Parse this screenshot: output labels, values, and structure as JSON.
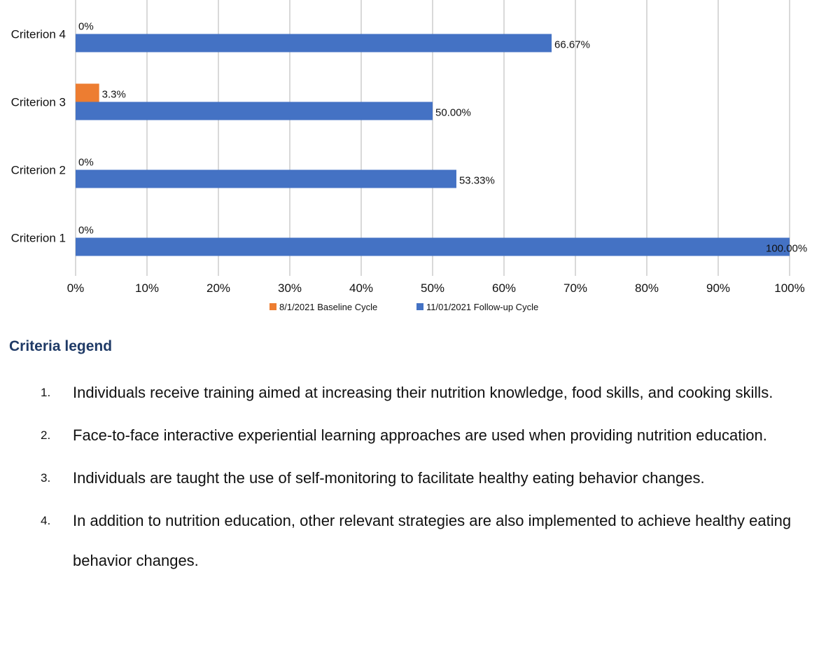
{
  "chart_data": {
    "type": "bar",
    "orientation": "horizontal",
    "categories": [
      "Criterion 4",
      "Criterion 3",
      "Criterion 2",
      "Criterion 1"
    ],
    "series": [
      {
        "name": "8/1/2021 Baseline Cycle",
        "color": "#ed7d31",
        "values": [
          0,
          3.3,
          0,
          0
        ],
        "labels": [
          "0%",
          "3.3%",
          "0%",
          "0%"
        ]
      },
      {
        "name": "11/01/2021 Follow-up Cycle",
        "color": "#4472c4",
        "values": [
          66.67,
          50.0,
          53.33,
          100.0
        ],
        "labels": [
          "66.67%",
          "50.00%",
          "53.33%",
          "100.00%"
        ]
      }
    ],
    "xlim": [
      0,
      100
    ],
    "xticks": [
      "0%",
      "10%",
      "20%",
      "30%",
      "40%",
      "50%",
      "60%",
      "70%",
      "80%",
      "90%",
      "100%"
    ],
    "grid": true,
    "legend_position": "bottom"
  },
  "criteria_legend": {
    "heading": "Criteria legend",
    "items": [
      {
        "num": "1.",
        "text": "Individuals receive training aimed at increasing their nutrition knowledge, food skills, and cooking skills."
      },
      {
        "num": "2.",
        "text": "Face-to-face interactive experiential learning approaches are used when providing nutrition education."
      },
      {
        "num": "3.",
        "text": "Individuals are taught the use of self-monitoring to facilitate healthy eating behavior changes."
      },
      {
        "num": "4.",
        "text": "In addition to nutrition education, other relevant strategies are also implemented to achieve healthy eating behavior changes."
      }
    ]
  }
}
